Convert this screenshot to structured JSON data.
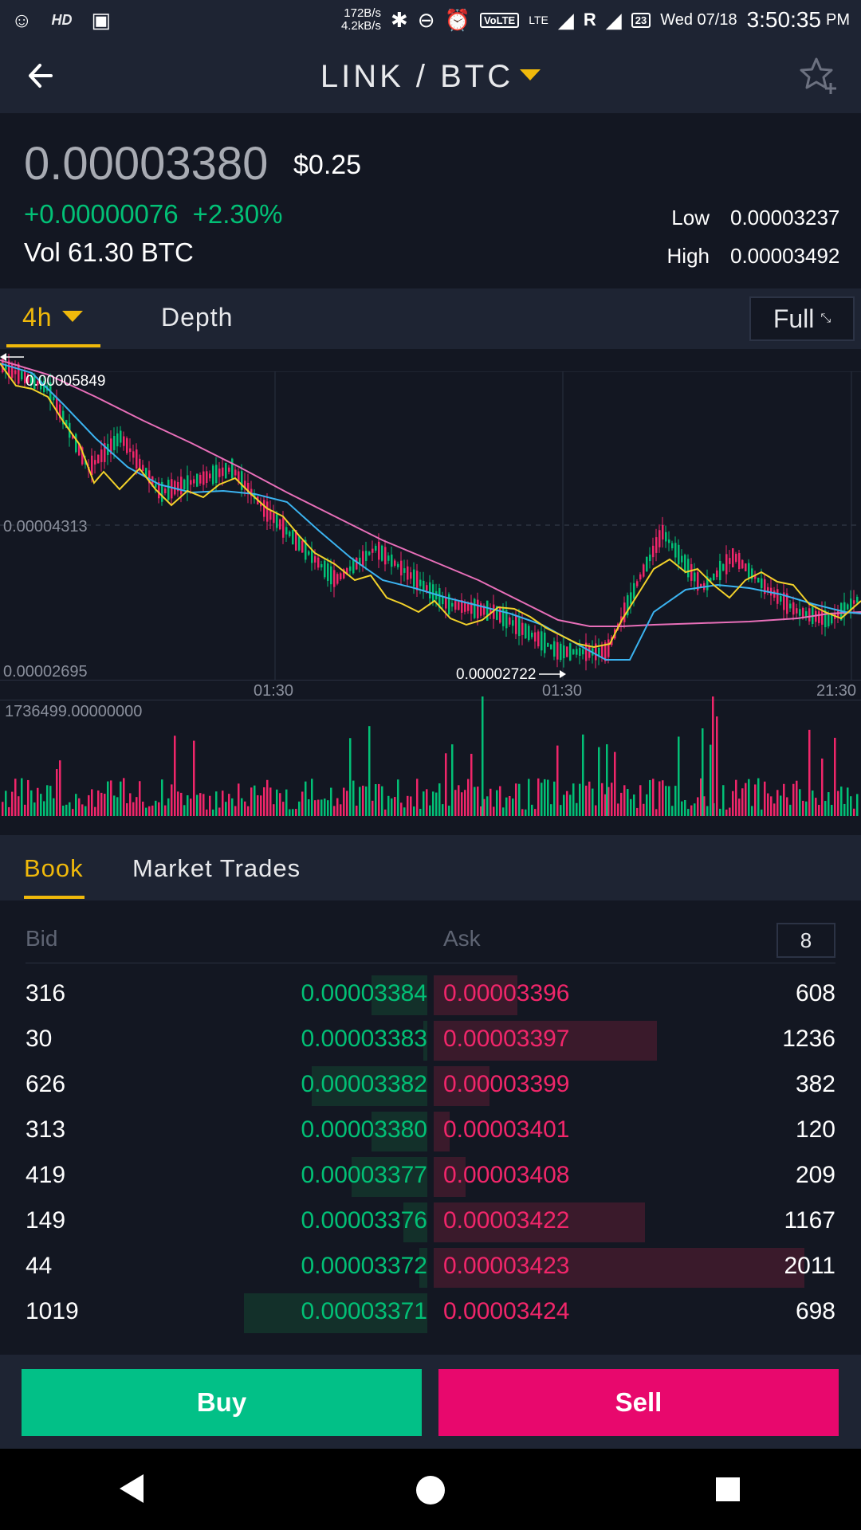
{
  "status_bar": {
    "speed_up": "172B/s",
    "speed_down": "4.2kB/s",
    "network": "VoLTE",
    "lte": "LTE",
    "roaming": "R",
    "calendar_badge": "23",
    "date": "Wed 07/18",
    "time": "3:50:35",
    "ampm": "PM",
    "hd": "HD"
  },
  "header": {
    "pair": "LINK / BTC"
  },
  "ticker": {
    "last_price": "0.00003380",
    "usd_price": "$0.25",
    "change_abs": "+0.00000076",
    "change_pct": "+2.30%",
    "volume": "Vol 61.30 BTC",
    "low_label": "Low",
    "low_value": "0.00003237",
    "high_label": "High",
    "high_value": "0.00003492"
  },
  "chart_tabs": {
    "interval": "4h",
    "depth": "Depth",
    "full": "Full"
  },
  "chart": {
    "price_top_label": "0.00005849",
    "price_mid_label": "0.00004313",
    "price_bottom_label": "0.00002695",
    "min_annotation": "0.00002722",
    "x_ticks": [
      "01:30",
      "01:30",
      "21:30"
    ],
    "volume_max_label": "1736499.00000000"
  },
  "book_tabs": {
    "book": "Book",
    "trades": "Market Trades"
  },
  "order_book": {
    "bid_header": "Bid",
    "ask_header": "Ask",
    "decimals": "8",
    "rows": [
      {
        "bid_qty": "316",
        "bid_price": "0.00003384",
        "ask_price": "0.00003396",
        "ask_qty": "608",
        "bid_depth": 0.14,
        "ask_depth": 0.21
      },
      {
        "bid_qty": "30",
        "bid_price": "0.00003383",
        "ask_price": "0.00003397",
        "ask_qty": "1236",
        "bid_depth": 0.01,
        "ask_depth": 0.56
      },
      {
        "bid_qty": "626",
        "bid_price": "0.00003382",
        "ask_price": "0.00003399",
        "ask_qty": "382",
        "bid_depth": 0.29,
        "ask_depth": 0.14
      },
      {
        "bid_qty": "313",
        "bid_price": "0.00003380",
        "ask_price": "0.00003401",
        "ask_qty": "120",
        "bid_depth": 0.14,
        "ask_depth": 0.04
      },
      {
        "bid_qty": "419",
        "bid_price": "0.00003377",
        "ask_price": "0.00003408",
        "ask_qty": "209",
        "bid_depth": 0.19,
        "ask_depth": 0.08
      },
      {
        "bid_qty": "149",
        "bid_price": "0.00003376",
        "ask_price": "0.00003422",
        "ask_qty": "1167",
        "bid_depth": 0.06,
        "ask_depth": 0.53
      },
      {
        "bid_qty": "44",
        "bid_price": "0.00003372",
        "ask_price": "0.00003423",
        "ask_qty": "2011",
        "bid_depth": 0.02,
        "ask_depth": 0.93
      },
      {
        "bid_qty": "1019",
        "bid_price": "0.00003371",
        "ask_price": "0.00003424",
        "ask_qty": "698",
        "bid_depth": 0.46,
        "ask_depth": 0.0
      }
    ]
  },
  "actions": {
    "buy": "Buy",
    "sell": "Sell"
  },
  "colors": {
    "up": "#02c076",
    "down": "#f0266a",
    "accent": "#f0b90b",
    "ma_fast": "#f2d12a",
    "ma_mid": "#3bb3f0",
    "ma_slow": "#e86fb9"
  }
}
